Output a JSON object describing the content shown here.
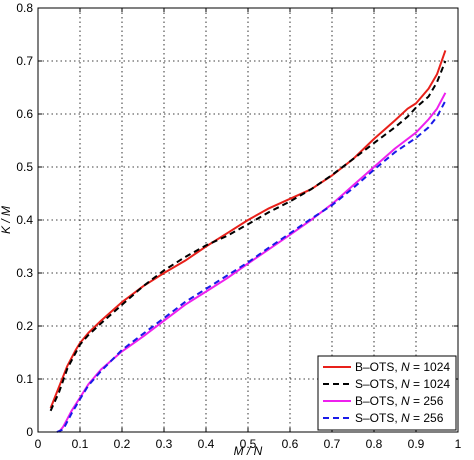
{
  "chart_data": {
    "type": "line",
    "xlabel": "M / N",
    "ylabel": "K / M",
    "xlim": [
      0,
      1
    ],
    "ylim": [
      0,
      0.8
    ],
    "xticks": [
      "0",
      "0.1",
      "0.2",
      "0.3",
      "0.4",
      "0.5",
      "0.6",
      "0.7",
      "0.8",
      "0.9",
      "1"
    ],
    "yticks": [
      "0",
      "0.1",
      "0.2",
      "0.3",
      "0.4",
      "0.5",
      "0.6",
      "0.7",
      "0.8"
    ],
    "grid": true,
    "legend_position": "bottom-right",
    "series": [
      {
        "name": "B–OTS, N = 1024",
        "legend_prefix": "B–OTS, ",
        "legend_n": "1024",
        "color": "#e8201a",
        "dash": "solid",
        "x": [
          0.03,
          0.05,
          0.07,
          0.09,
          0.1,
          0.12,
          0.15,
          0.2,
          0.25,
          0.3,
          0.35,
          0.4,
          0.45,
          0.5,
          0.55,
          0.6,
          0.65,
          0.7,
          0.75,
          0.8,
          0.85,
          0.88,
          0.9,
          0.93,
          0.95,
          0.97
        ],
        "y": [
          0.045,
          0.085,
          0.125,
          0.155,
          0.168,
          0.187,
          0.21,
          0.245,
          0.275,
          0.3,
          0.323,
          0.35,
          0.375,
          0.4,
          0.422,
          0.44,
          0.458,
          0.484,
          0.515,
          0.553,
          0.588,
          0.61,
          0.62,
          0.648,
          0.675,
          0.72
        ]
      },
      {
        "name": "S–OTS, N = 1024",
        "legend_prefix": "S–OTS, ",
        "legend_n": "1024",
        "color": "#000000",
        "dash": "dashed",
        "x": [
          0.03,
          0.05,
          0.07,
          0.09,
          0.1,
          0.12,
          0.15,
          0.2,
          0.25,
          0.3,
          0.35,
          0.4,
          0.45,
          0.5,
          0.55,
          0.6,
          0.65,
          0.7,
          0.75,
          0.8,
          0.85,
          0.88,
          0.9,
          0.93,
          0.95,
          0.97
        ],
        "y": [
          0.04,
          0.075,
          0.12,
          0.15,
          0.165,
          0.183,
          0.205,
          0.24,
          0.275,
          0.305,
          0.33,
          0.352,
          0.37,
          0.392,
          0.415,
          0.435,
          0.458,
          0.485,
          0.515,
          0.545,
          0.575,
          0.595,
          0.612,
          0.633,
          0.66,
          0.7
        ]
      },
      {
        "name": "B–OTS, N = 256",
        "legend_prefix": "B–OTS, ",
        "legend_n": "256",
        "color": "#ee20ee",
        "dash": "solid",
        "x": [
          0.05,
          0.06,
          0.07,
          0.08,
          0.1,
          0.12,
          0.15,
          0.2,
          0.25,
          0.3,
          0.35,
          0.4,
          0.45,
          0.5,
          0.55,
          0.6,
          0.65,
          0.7,
          0.75,
          0.8,
          0.85,
          0.9,
          0.93,
          0.95,
          0.97
        ],
        "y": [
          0.0,
          0.01,
          0.025,
          0.04,
          0.065,
          0.09,
          0.118,
          0.152,
          0.18,
          0.21,
          0.24,
          0.265,
          0.29,
          0.318,
          0.345,
          0.372,
          0.4,
          0.43,
          0.465,
          0.5,
          0.535,
          0.565,
          0.59,
          0.61,
          0.64
        ]
      },
      {
        "name": "S–OTS, N = 256",
        "legend_prefix": "S–OTS, ",
        "legend_n": "256",
        "color": "#1a1ae8",
        "dash": "dashed",
        "x": [
          0.045,
          0.06,
          0.07,
          0.08,
          0.1,
          0.12,
          0.15,
          0.2,
          0.25,
          0.3,
          0.35,
          0.4,
          0.45,
          0.5,
          0.55,
          0.6,
          0.65,
          0.7,
          0.75,
          0.8,
          0.85,
          0.9,
          0.93,
          0.95,
          0.97
        ],
        "y": [
          0.0,
          0.005,
          0.02,
          0.035,
          0.062,
          0.088,
          0.115,
          0.155,
          0.185,
          0.215,
          0.245,
          0.27,
          0.295,
          0.32,
          0.348,
          0.375,
          0.402,
          0.428,
          0.46,
          0.495,
          0.528,
          0.555,
          0.575,
          0.595,
          0.625
        ]
      }
    ]
  }
}
